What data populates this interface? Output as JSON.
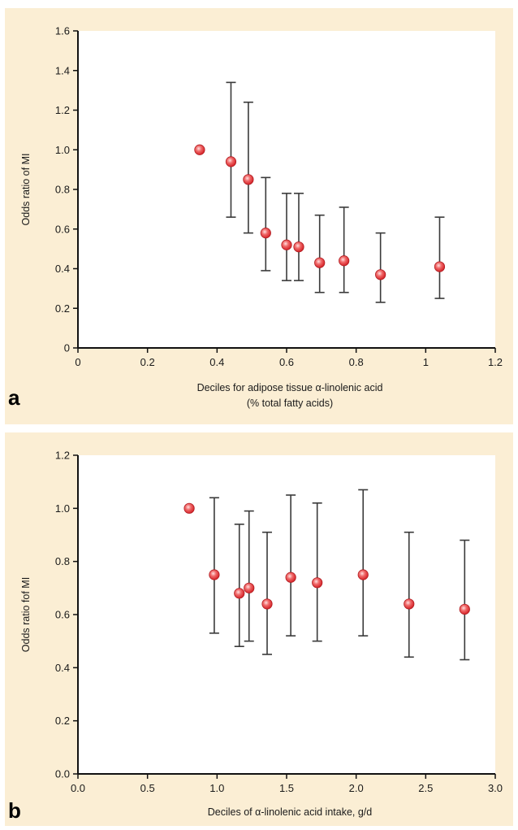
{
  "chart_data": [
    {
      "panel": "a",
      "type": "scatter",
      "xlabel": "Deciles for adipose tissue α-linolenic acid",
      "xlabel_line2": "(% total fatty acids)",
      "ylabel": "Odds ratio of MI",
      "xlim": [
        0,
        1.2
      ],
      "ylim": [
        0,
        1.6
      ],
      "xticks": [
        0,
        0.2,
        0.4,
        0.6,
        0.8,
        1,
        1.2
      ],
      "xtick_labels": [
        "0",
        "0.2",
        "0.4",
        "0.6",
        "0.8",
        "1",
        "1.2"
      ],
      "yticks": [
        0,
        0.2,
        0.4,
        0.6,
        0.8,
        1.0,
        1.2,
        1.4,
        1.6
      ],
      "ytick_labels": [
        "0",
        "0.2",
        "0.4",
        "0.6",
        "0.8",
        "1.0",
        "1.2",
        "1.4",
        "1.6"
      ],
      "points": [
        {
          "x": 0.35,
          "y": 1.0
        },
        {
          "x": 0.44,
          "y": 0.94,
          "lower": 0.66,
          "upper": 1.34
        },
        {
          "x": 0.49,
          "y": 0.85,
          "lower": 0.58,
          "upper": 1.24
        },
        {
          "x": 0.54,
          "y": 0.58,
          "lower": 0.39,
          "upper": 0.86
        },
        {
          "x": 0.6,
          "y": 0.52,
          "lower": 0.34,
          "upper": 0.78
        },
        {
          "x": 0.635,
          "y": 0.51,
          "lower": 0.34,
          "upper": 0.78
        },
        {
          "x": 0.695,
          "y": 0.43,
          "lower": 0.28,
          "upper": 0.67
        },
        {
          "x": 0.765,
          "y": 0.44,
          "lower": 0.28,
          "upper": 0.71
        },
        {
          "x": 0.87,
          "y": 0.37,
          "lower": 0.23,
          "upper": 0.58
        },
        {
          "x": 1.04,
          "y": 0.41,
          "lower": 0.25,
          "upper": 0.66
        }
      ],
      "marker_color": "#d7262b",
      "errorbar_color": "#3a3a3a",
      "plot_bg": "#ffffff",
      "panel_bg": "#fbeed4"
    },
    {
      "panel": "b",
      "type": "scatter",
      "xlabel": "Deciles of α-linolenic acid intake, g/d",
      "ylabel": "Odds ratio fof MI",
      "xlim": [
        0,
        3.0
      ],
      "ylim": [
        0,
        1.2
      ],
      "xticks": [
        0,
        0.5,
        1,
        1.5,
        2,
        2.5,
        3
      ],
      "xtick_labels": [
        "0.0",
        "0.5",
        "1.0",
        "1.5",
        "2.0",
        "2.5",
        "3.0"
      ],
      "yticks": [
        0,
        0.2,
        0.4,
        0.6,
        0.8,
        1.0,
        1.2
      ],
      "ytick_labels": [
        "0.0",
        "0.2",
        "0.4",
        "0.6",
        "0.8",
        "1.0",
        "1.2"
      ],
      "points": [
        {
          "x": 0.8,
          "y": 1.0
        },
        {
          "x": 0.98,
          "y": 0.75,
          "lower": 0.53,
          "upper": 1.04
        },
        {
          "x": 1.16,
          "y": 0.68,
          "lower": 0.48,
          "upper": 0.94
        },
        {
          "x": 1.23,
          "y": 0.7,
          "lower": 0.5,
          "upper": 0.99
        },
        {
          "x": 1.36,
          "y": 0.64,
          "lower": 0.45,
          "upper": 0.91
        },
        {
          "x": 1.53,
          "y": 0.74,
          "lower": 0.52,
          "upper": 1.05
        },
        {
          "x": 1.72,
          "y": 0.72,
          "lower": 0.5,
          "upper": 1.02
        },
        {
          "x": 2.05,
          "y": 0.75,
          "lower": 0.52,
          "upper": 1.07
        },
        {
          "x": 2.38,
          "y": 0.64,
          "lower": 0.44,
          "upper": 0.91
        },
        {
          "x": 2.78,
          "y": 0.62,
          "lower": 0.43,
          "upper": 0.88
        }
      ],
      "marker_color": "#d7262b",
      "errorbar_color": "#3a3a3a",
      "plot_bg": "#ffffff",
      "panel_bg": "#fbeed4"
    }
  ],
  "panel_labels": {
    "a": "a",
    "b": "b"
  }
}
